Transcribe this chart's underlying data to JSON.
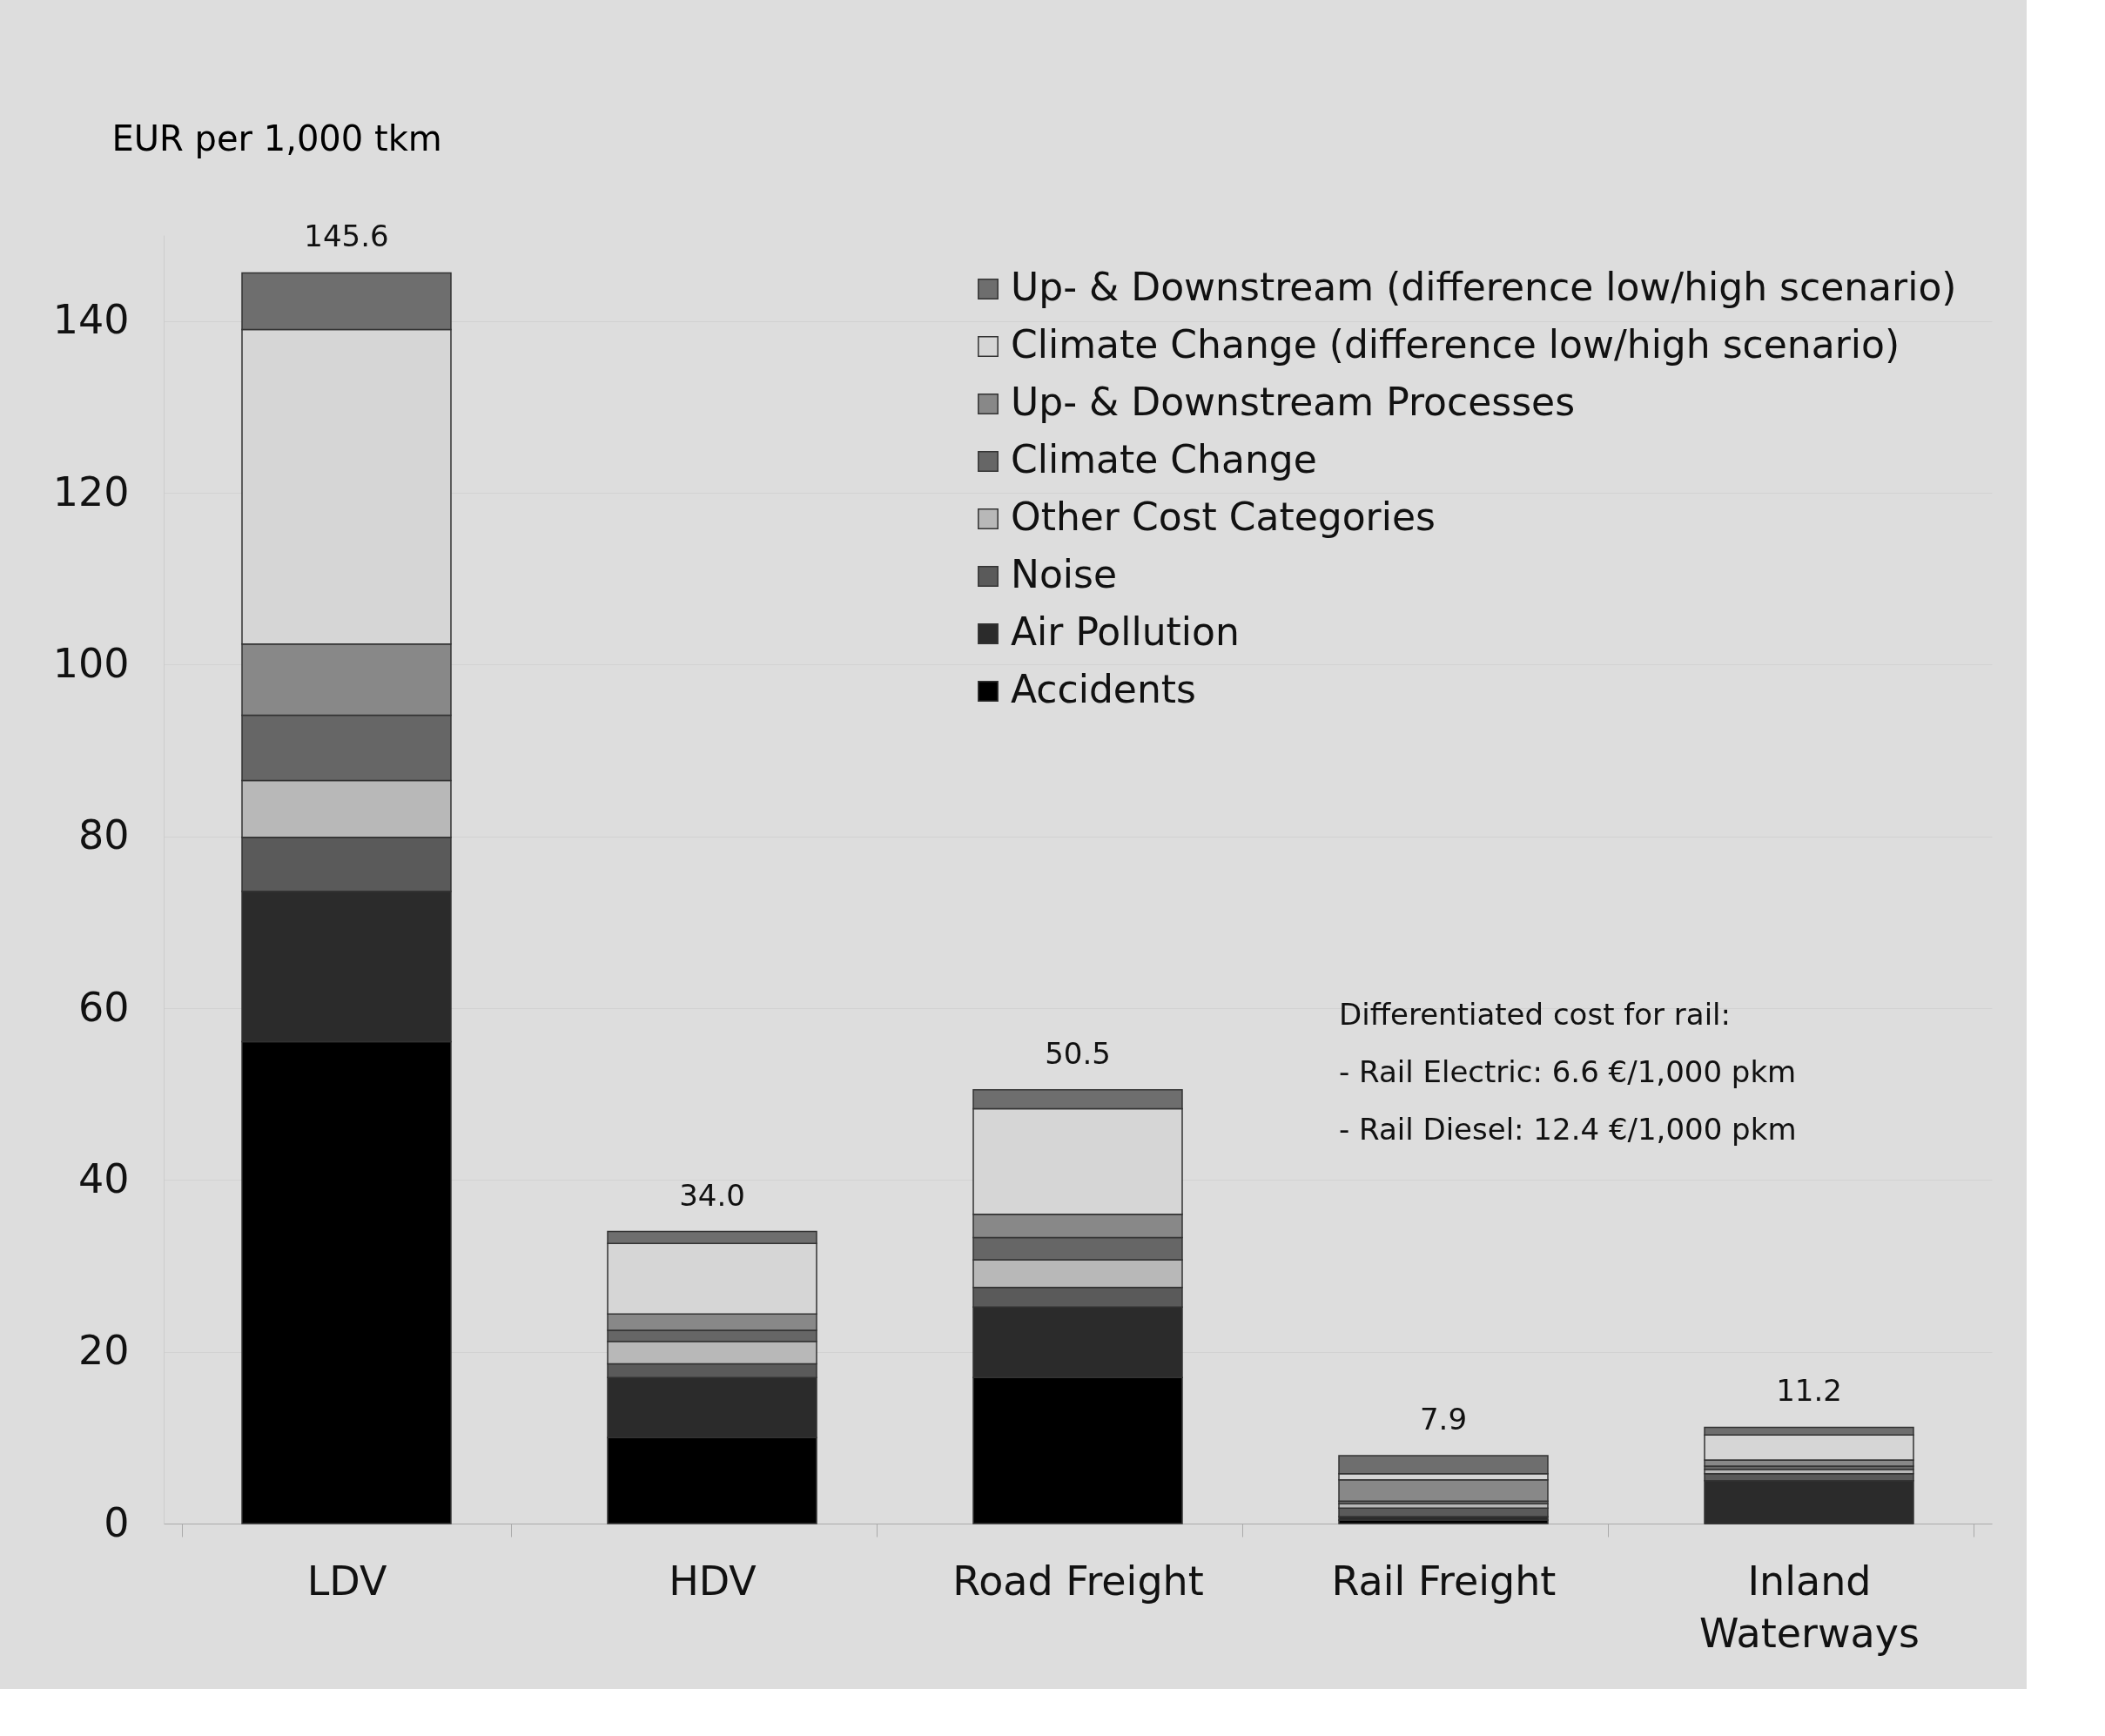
{
  "chart_data": {
    "type": "bar",
    "stacked": true,
    "ylabel": "EUR per 1,000 tkm",
    "categories": [
      "LDV",
      "HDV",
      "Road Freight",
      "Rail Freight",
      "Inland Waterways"
    ],
    "series": [
      {
        "name": "Accidents",
        "color": "#000000",
        "values": [
          56.1,
          10.0,
          17.0,
          0.4,
          0.0
        ]
      },
      {
        "name": "Air Pollution",
        "color": "#2b2b2b",
        "values": [
          17.5,
          7.0,
          8.2,
          0.4,
          5.0
        ]
      },
      {
        "name": "Noise",
        "color": "#5a5a5a",
        "values": [
          6.3,
          1.6,
          2.3,
          1.0,
          0.8
        ]
      },
      {
        "name": "Other Cost Categories",
        "color": "#b8b8b8",
        "values": [
          6.6,
          2.6,
          3.2,
          0.5,
          0.5
        ]
      },
      {
        "name": "Climate Change",
        "color": "#666666",
        "values": [
          7.6,
          1.3,
          2.6,
          0.3,
          0.4
        ]
      },
      {
        "name": "Up- & Downstream Processes",
        "color": "#888888",
        "values": [
          8.3,
          1.9,
          2.7,
          2.5,
          0.7
        ]
      },
      {
        "name": "Climate Change (difference low/high scenario)",
        "color": "#d6d6d6",
        "values": [
          36.6,
          8.2,
          12.3,
          0.7,
          2.9
        ]
      },
      {
        "name": "Up- & Downstream (difference low/high scenario)",
        "color": "#6e6e6e",
        "values": [
          6.6,
          1.4,
          2.2,
          2.1,
          0.9
        ]
      }
    ],
    "totals": [
      "145.6",
      "34.0",
      "50.5",
      "7.9",
      "11.2"
    ],
    "ylim": [
      0,
      150
    ],
    "yticks": [
      0,
      20,
      40,
      60,
      80,
      100,
      120,
      140
    ],
    "grid": "y",
    "legend": "top right",
    "annotations": [
      "Differentiated cost for rail:",
      "- Rail Electric: 6.6 €/1,000 pkm",
      "- Rail Diesel: 12.4 €/1,000 pkm"
    ]
  }
}
